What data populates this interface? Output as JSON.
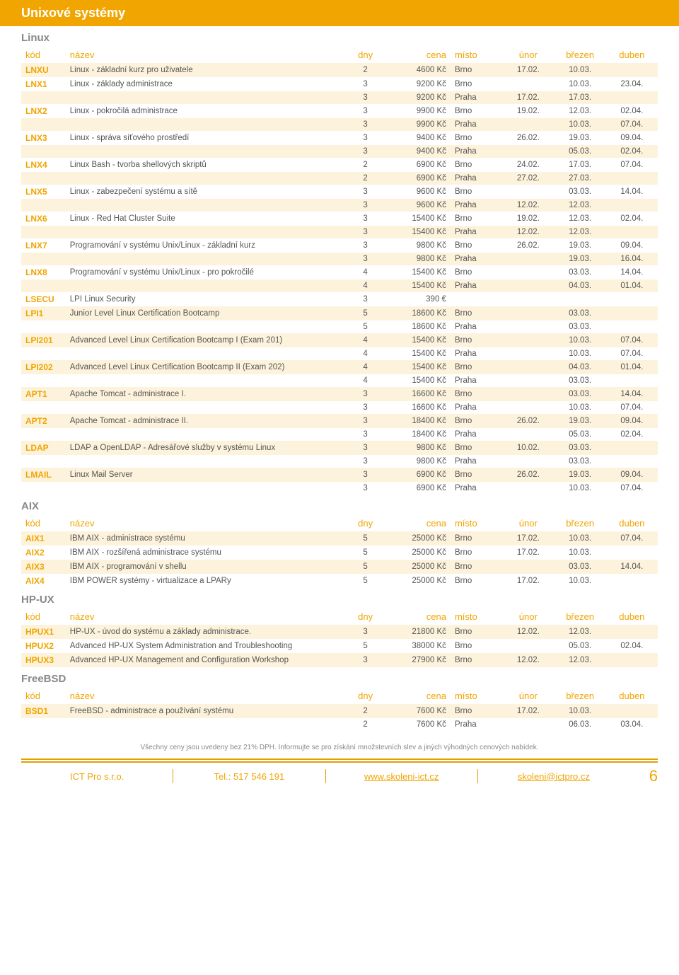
{
  "banner": "Unixové systémy",
  "columns": [
    "kód",
    "název",
    "dny",
    "cena",
    "místo",
    "únor",
    "březen",
    "duben"
  ],
  "sections": [
    {
      "title": "Linux",
      "rows": [
        {
          "stripe": true,
          "kod": "LNXU",
          "nazev": "Linux - základní kurz pro uživatele",
          "dny": "2",
          "cena": "4600 Kč",
          "misto": "Brno",
          "unor": "17.02.",
          "brezen": "10.03.",
          "duben": ""
        },
        {
          "stripe": false,
          "kod": "LNX1",
          "nazev": "Linux - základy administrace",
          "dny": "3",
          "cena": "9200 Kč",
          "misto": "Brno",
          "unor": "",
          "brezen": "10.03.",
          "duben": "23.04."
        },
        {
          "stripe": true,
          "kod": "",
          "nazev": "",
          "dny": "3",
          "cena": "9200 Kč",
          "misto": "Praha",
          "unor": "17.02.",
          "brezen": "17.03.",
          "duben": ""
        },
        {
          "stripe": false,
          "kod": "LNX2",
          "nazev": "Linux - pokročilá administrace",
          "dny": "3",
          "cena": "9900 Kč",
          "misto": "Brno",
          "unor": "19.02.",
          "brezen": "12.03.",
          "duben": "02.04."
        },
        {
          "stripe": true,
          "kod": "",
          "nazev": "",
          "dny": "3",
          "cena": "9900 Kč",
          "misto": "Praha",
          "unor": "",
          "brezen": "10.03.",
          "duben": "07.04."
        },
        {
          "stripe": false,
          "kod": "LNX3",
          "nazev": "Linux - správa síťového prostředí",
          "dny": "3",
          "cena": "9400 Kč",
          "misto": "Brno",
          "unor": "26.02.",
          "brezen": "19.03.",
          "duben": "09.04."
        },
        {
          "stripe": true,
          "kod": "",
          "nazev": "",
          "dny": "3",
          "cena": "9400 Kč",
          "misto": "Praha",
          "unor": "",
          "brezen": "05.03.",
          "duben": "02.04."
        },
        {
          "stripe": false,
          "kod": "LNX4",
          "nazev": "Linux Bash - tvorba shellových skriptů",
          "dny": "2",
          "cena": "6900 Kč",
          "misto": "Brno",
          "unor": "24.02.",
          "brezen": "17.03.",
          "duben": "07.04."
        },
        {
          "stripe": true,
          "kod": "",
          "nazev": "",
          "dny": "2",
          "cena": "6900 Kč",
          "misto": "Praha",
          "unor": "27.02.",
          "brezen": "27.03.",
          "duben": ""
        },
        {
          "stripe": false,
          "kod": "LNX5",
          "nazev": "Linux - zabezpečení systému a sítě",
          "dny": "3",
          "cena": "9600 Kč",
          "misto": "Brno",
          "unor": "",
          "brezen": "03.03.",
          "duben": "14.04."
        },
        {
          "stripe": true,
          "kod": "",
          "nazev": "",
          "dny": "3",
          "cena": "9600 Kč",
          "misto": "Praha",
          "unor": "12.02.",
          "brezen": "12.03.",
          "duben": ""
        },
        {
          "stripe": false,
          "kod": "LNX6",
          "nazev": "Linux - Red Hat Cluster Suite",
          "dny": "3",
          "cena": "15400 Kč",
          "misto": "Brno",
          "unor": "19.02.",
          "brezen": "12.03.",
          "duben": "02.04."
        },
        {
          "stripe": true,
          "kod": "",
          "nazev": "",
          "dny": "3",
          "cena": "15400 Kč",
          "misto": "Praha",
          "unor": "12.02.",
          "brezen": "12.03.",
          "duben": ""
        },
        {
          "stripe": false,
          "kod": "LNX7",
          "nazev": "Programování v systému Unix/Linux - základní kurz",
          "dny": "3",
          "cena": "9800 Kč",
          "misto": "Brno",
          "unor": "26.02.",
          "brezen": "19.03.",
          "duben": "09.04."
        },
        {
          "stripe": true,
          "kod": "",
          "nazev": "",
          "dny": "3",
          "cena": "9800 Kč",
          "misto": "Praha",
          "unor": "",
          "brezen": "19.03.",
          "duben": "16.04."
        },
        {
          "stripe": false,
          "kod": "LNX8",
          "nazev": "Programování v systému Unix/Linux - pro pokročilé",
          "dny": "4",
          "cena": "15400 Kč",
          "misto": "Brno",
          "unor": "",
          "brezen": "03.03.",
          "duben": "14.04."
        },
        {
          "stripe": true,
          "kod": "",
          "nazev": "",
          "dny": "4",
          "cena": "15400 Kč",
          "misto": "Praha",
          "unor": "",
          "brezen": "04.03.",
          "duben": "01.04."
        },
        {
          "stripe": false,
          "kod": "LSECU",
          "nazev": "LPI Linux Security",
          "dny": "3",
          "cena": "390 €",
          "misto": "",
          "unor": "",
          "brezen": "",
          "duben": ""
        },
        {
          "stripe": true,
          "kod": "LPI1",
          "nazev": "Junior Level Linux Certification Bootcamp",
          "dny": "5",
          "cena": "18600 Kč",
          "misto": "Brno",
          "unor": "",
          "brezen": "03.03.",
          "duben": ""
        },
        {
          "stripe": false,
          "kod": "",
          "nazev": "",
          "dny": "5",
          "cena": "18600 Kč",
          "misto": "Praha",
          "unor": "",
          "brezen": "03.03.",
          "duben": ""
        },
        {
          "stripe": true,
          "kod": "LPI201",
          "nazev": "Advanced Level Linux Certification Bootcamp I (Exam 201)",
          "dny": "4",
          "cena": "15400 Kč",
          "misto": "Brno",
          "unor": "",
          "brezen": "10.03.",
          "duben": "07.04."
        },
        {
          "stripe": false,
          "kod": "",
          "nazev": "",
          "dny": "4",
          "cena": "15400 Kč",
          "misto": "Praha",
          "unor": "",
          "brezen": "10.03.",
          "duben": "07.04."
        },
        {
          "stripe": true,
          "kod": "LPI202",
          "nazev": "Advanced Level Linux Certification Bootcamp II (Exam 202)",
          "dny": "4",
          "cena": "15400 Kč",
          "misto": "Brno",
          "unor": "",
          "brezen": "04.03.",
          "duben": "01.04."
        },
        {
          "stripe": false,
          "kod": "",
          "nazev": "",
          "dny": "4",
          "cena": "15400 Kč",
          "misto": "Praha",
          "unor": "",
          "brezen": "03.03.",
          "duben": ""
        },
        {
          "stripe": true,
          "kod": "APT1",
          "nazev": "Apache Tomcat - administrace I.",
          "dny": "3",
          "cena": "16600 Kč",
          "misto": "Brno",
          "unor": "",
          "brezen": "03.03.",
          "duben": "14.04."
        },
        {
          "stripe": false,
          "kod": "",
          "nazev": "",
          "dny": "3",
          "cena": "16600 Kč",
          "misto": "Praha",
          "unor": "",
          "brezen": "10.03.",
          "duben": "07.04."
        },
        {
          "stripe": true,
          "kod": "APT2",
          "nazev": "Apache Tomcat - administrace II.",
          "dny": "3",
          "cena": "18400 Kč",
          "misto": "Brno",
          "unor": "26.02.",
          "brezen": "19.03.",
          "duben": "09.04."
        },
        {
          "stripe": false,
          "kod": "",
          "nazev": "",
          "dny": "3",
          "cena": "18400 Kč",
          "misto": "Praha",
          "unor": "",
          "brezen": "05.03.",
          "duben": "02.04."
        },
        {
          "stripe": true,
          "kod": "LDAP",
          "nazev": "LDAP a OpenLDAP - Adresářové služby v systému Linux",
          "dny": "3",
          "cena": "9800 Kč",
          "misto": "Brno",
          "unor": "10.02.",
          "brezen": "03.03.",
          "duben": ""
        },
        {
          "stripe": false,
          "kod": "",
          "nazev": "",
          "dny": "3",
          "cena": "9800 Kč",
          "misto": "Praha",
          "unor": "",
          "brezen": "03.03.",
          "duben": ""
        },
        {
          "stripe": true,
          "kod": "LMAIL",
          "nazev": "Linux Mail Server",
          "dny": "3",
          "cena": "6900 Kč",
          "misto": "Brno",
          "unor": "26.02.",
          "brezen": "19.03.",
          "duben": "09.04."
        },
        {
          "stripe": false,
          "kod": "",
          "nazev": "",
          "dny": "3",
          "cena": "6900 Kč",
          "misto": "Praha",
          "unor": "",
          "brezen": "10.03.",
          "duben": "07.04."
        }
      ]
    },
    {
      "title": "AIX",
      "rows": [
        {
          "stripe": true,
          "kod": "AIX1",
          "nazev": "IBM AIX - administrace systému",
          "dny": "5",
          "cena": "25000 Kč",
          "misto": "Brno",
          "unor": "17.02.",
          "brezen": "10.03.",
          "duben": "07.04."
        },
        {
          "stripe": false,
          "kod": "AIX2",
          "nazev": "IBM AIX - rozšířená administrace systému",
          "dny": "5",
          "cena": "25000 Kč",
          "misto": "Brno",
          "unor": "17.02.",
          "brezen": "10.03.",
          "duben": ""
        },
        {
          "stripe": true,
          "kod": "AIX3",
          "nazev": "IBM AIX - programování v shellu",
          "dny": "5",
          "cena": "25000 Kč",
          "misto": "Brno",
          "unor": "",
          "brezen": "03.03.",
          "duben": "14.04."
        },
        {
          "stripe": false,
          "kod": "AIX4",
          "nazev": "IBM POWER systémy - virtualizace a LPARy",
          "dny": "5",
          "cena": "25000 Kč",
          "misto": "Brno",
          "unor": "17.02.",
          "brezen": "10.03.",
          "duben": ""
        }
      ]
    },
    {
      "title": "HP-UX",
      "rows": [
        {
          "stripe": true,
          "kod": "HPUX1",
          "nazev": "HP-UX - úvod do systému a základy administrace.",
          "dny": "3",
          "cena": "21800 Kč",
          "misto": "Brno",
          "unor": "12.02.",
          "brezen": "12.03.",
          "duben": ""
        },
        {
          "stripe": false,
          "kod": "HPUX2",
          "nazev": "Advanced HP-UX System Administration and Troubleshooting",
          "dny": "5",
          "cena": "38000 Kč",
          "misto": "Brno",
          "unor": "",
          "brezen": "05.03.",
          "duben": "02.04."
        },
        {
          "stripe": true,
          "kod": "HPUX3",
          "nazev": "Advanced HP-UX Management and Configuration Workshop",
          "dny": "3",
          "cena": "27900 Kč",
          "misto": "Brno",
          "unor": "12.02.",
          "brezen": "12.03.",
          "duben": ""
        }
      ]
    },
    {
      "title": "FreeBSD",
      "rows": [
        {
          "stripe": true,
          "kod": "BSD1",
          "nazev": "FreeBSD - administrace a používání systému",
          "dny": "2",
          "cena": "7600 Kč",
          "misto": "Brno",
          "unor": "17.02.",
          "brezen": "10.03.",
          "duben": ""
        },
        {
          "stripe": false,
          "kod": "",
          "nazev": "",
          "dny": "2",
          "cena": "7600 Kč",
          "misto": "Praha",
          "unor": "",
          "brezen": "06.03.",
          "duben": "03.04."
        }
      ]
    }
  ],
  "footnote": "Všechny ceny jsou uvedeny bez 21% DPH. Informujte se pro získání množstevních slev a jiných výhodných cenových nabídek.",
  "footer": {
    "company": "ICT Pro s.r.o.",
    "tel_label": "Tel.: ",
    "tel": "517 546 191",
    "web": "www.skoleni-ict.cz",
    "email": "skoleni@ictpro.cz",
    "page": "6"
  }
}
